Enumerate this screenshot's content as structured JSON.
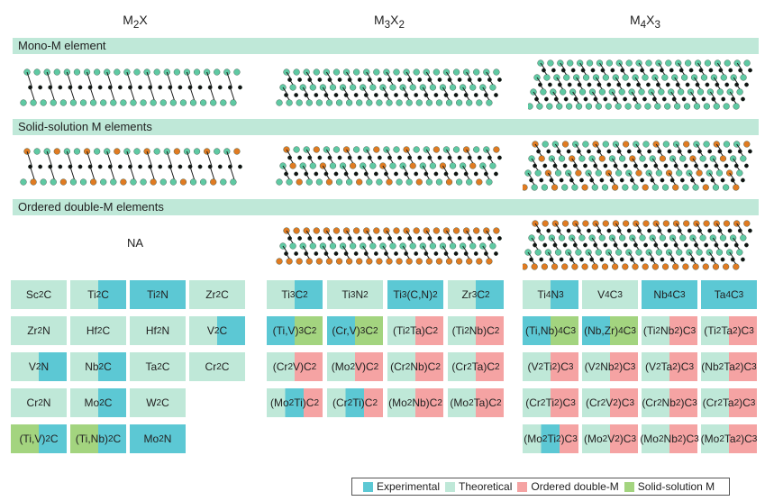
{
  "columns": [
    "M2X",
    "M3X2",
    "M4X3"
  ],
  "column_titles_html": [
    "M<sub>2</sub>X",
    "M<sub>3</sub>X<sub>2</sub>",
    "M<sub>4</sub>X<sub>3</sub>"
  ],
  "rows": [
    "Mono-M element",
    "Solid-solution M elements",
    "Ordered double-M elements"
  ],
  "na_label": "NA",
  "colors": {
    "experimental": "#5cc8d4",
    "theoretical": "#bfe8d8",
    "ordered": "#f5a3a3",
    "solid": "#a3d47f",
    "atom_green": "#5fc9a3",
    "atom_orange": "#e07b22",
    "atom_black": "#111111"
  },
  "legend": [
    {
      "label": "Experimental",
      "key": "experimental"
    },
    {
      "label": "Theoretical",
      "key": "theoretical"
    },
    {
      "label": "Ordered double-M",
      "key": "ordered"
    },
    {
      "label": "Solid-solution M",
      "key": "solid"
    }
  ],
  "m2x_cells": [
    {
      "html": "Sc<sub>2</sub>C",
      "fill": [
        "theoretical"
      ]
    },
    {
      "html": "Ti<sub>2</sub>C",
      "fill": [
        "theoretical",
        "experimental"
      ]
    },
    {
      "html": "Ti<sub>2</sub>N",
      "fill": [
        "experimental"
      ]
    },
    {
      "html": "Zr<sub>2</sub>C",
      "fill": [
        "theoretical"
      ]
    },
    {
      "html": "Zr<sub>2</sub>N",
      "fill": [
        "theoretical"
      ]
    },
    {
      "html": "Hf<sub>2</sub>C",
      "fill": [
        "theoretical"
      ]
    },
    {
      "html": "Hf<sub>2</sub>N",
      "fill": [
        "theoretical"
      ]
    },
    {
      "html": "V<sub>2</sub>C",
      "fill": [
        "theoretical",
        "experimental"
      ]
    },
    {
      "html": "V<sub>2</sub>N",
      "fill": [
        "theoretical",
        "experimental"
      ]
    },
    {
      "html": "Nb<sub>2</sub>C",
      "fill": [
        "theoretical",
        "experimental"
      ]
    },
    {
      "html": "Ta<sub>2</sub>C",
      "fill": [
        "theoretical"
      ]
    },
    {
      "html": "Cr<sub>2</sub>C",
      "fill": [
        "theoretical"
      ]
    },
    {
      "html": "Cr<sub>2</sub>N",
      "fill": [
        "theoretical"
      ]
    },
    {
      "html": "Mo<sub>2</sub>C",
      "fill": [
        "theoretical",
        "experimental"
      ]
    },
    {
      "html": "W<sub>2</sub>C",
      "fill": [
        "theoretical"
      ]
    },
    null,
    {
      "html": "(Ti,V)<sub>2</sub>C",
      "fill": [
        "solid",
        "experimental"
      ]
    },
    {
      "html": "(Ti,Nb)<sub>2</sub>C",
      "fill": [
        "solid",
        "experimental"
      ]
    },
    {
      "html": "Mo<sub>2</sub>N",
      "fill": [
        "experimental"
      ]
    },
    null
  ],
  "m3x2_cells": [
    {
      "html": "Ti<sub>3</sub>C<sub>2</sub>",
      "fill": [
        "theoretical",
        "experimental"
      ]
    },
    {
      "html": "Ti<sub>3</sub>N<sub>2</sub>",
      "fill": [
        "theoretical"
      ]
    },
    {
      "html": "Ti<sub>3</sub>(C,N)<sub>2</sub>",
      "fill": [
        "experimental"
      ]
    },
    {
      "html": "Zr<sub>3</sub>C<sub>2</sub>",
      "fill": [
        "theoretical",
        "experimental"
      ]
    },
    {
      "html": "(Ti,V)<sub>3</sub>C<sub>2</sub>",
      "fill": [
        "experimental",
        "solid"
      ]
    },
    {
      "html": "(Cr,V)<sub>3</sub>C<sub>2</sub>",
      "fill": [
        "experimental",
        "solid"
      ]
    },
    {
      "html": "(Ti<sub>2</sub>Ta)C<sub>2</sub>",
      "fill": [
        "theoretical",
        "ordered"
      ]
    },
    {
      "html": "(Ti<sub>2</sub>Nb)C<sub>2</sub>",
      "fill": [
        "theoretical",
        "ordered"
      ]
    },
    {
      "html": "(Cr<sub>2</sub>V)C<sub>2</sub>",
      "fill": [
        "theoretical",
        "ordered"
      ]
    },
    {
      "html": "(Mo<sub>2</sub>V)C<sub>2</sub>",
      "fill": [
        "theoretical",
        "ordered"
      ]
    },
    {
      "html": "(Cr<sub>2</sub>Nb)C<sub>2</sub>",
      "fill": [
        "theoretical",
        "ordered"
      ]
    },
    {
      "html": "(Cr<sub>2</sub>Ta)C<sub>2</sub>",
      "fill": [
        "theoretical",
        "ordered"
      ]
    },
    {
      "html": "(Mo<sub>2</sub>Ti)C<sub>2</sub>",
      "fill": [
        "theoretical",
        "experimental",
        "ordered"
      ]
    },
    {
      "html": "(Cr<sub>2</sub>Ti)C<sub>2</sub>",
      "fill": [
        "theoretical",
        "experimental",
        "ordered"
      ]
    },
    {
      "html": "(Mo<sub>2</sub>Nb)C<sub>2</sub>",
      "fill": [
        "theoretical",
        "ordered"
      ]
    },
    {
      "html": "(Mo<sub>2</sub>Ta)C<sub>2</sub>",
      "fill": [
        "theoretical",
        "ordered"
      ]
    }
  ],
  "m4x3_cells": [
    {
      "html": "Ti<sub>4</sub>N<sub>3</sub>",
      "fill": [
        "theoretical",
        "experimental"
      ]
    },
    {
      "html": "V<sub>4</sub>C<sub>3</sub>",
      "fill": [
        "theoretical"
      ]
    },
    {
      "html": "Nb<sub>4</sub>C<sub>3</sub>",
      "fill": [
        "experimental"
      ]
    },
    {
      "html": "Ta<sub>4</sub>C<sub>3</sub>",
      "fill": [
        "experimental"
      ]
    },
    {
      "html": "(Ti,Nb)<sub>4</sub>C<sub>3</sub>",
      "fill": [
        "experimental",
        "solid"
      ]
    },
    {
      "html": "(Nb,Zr)<sub>4</sub>C<sub>3</sub>",
      "fill": [
        "experimental",
        "solid"
      ]
    },
    {
      "html": "(Ti<sub>2</sub>Nb<sub>2</sub>)C<sub>3</sub>",
      "fill": [
        "theoretical",
        "ordered"
      ]
    },
    {
      "html": "(Ti<sub>2</sub>Ta<sub>2</sub>)C<sub>3</sub>",
      "fill": [
        "theoretical",
        "ordered"
      ]
    },
    {
      "html": "(V<sub>2</sub>Ti<sub>2</sub>)C<sub>3</sub>",
      "fill": [
        "theoretical",
        "ordered"
      ]
    },
    {
      "html": "(V<sub>2</sub>Nb<sub>2</sub>)C<sub>3</sub>",
      "fill": [
        "theoretical",
        "ordered"
      ]
    },
    {
      "html": "(V<sub>2</sub>Ta<sub>2</sub>)C<sub>3</sub>",
      "fill": [
        "theoretical",
        "ordered"
      ]
    },
    {
      "html": "(Nb<sub>2</sub>Ta<sub>2</sub>)C<sub>3</sub>",
      "fill": [
        "theoretical",
        "ordered"
      ]
    },
    {
      "html": "(Cr<sub>2</sub>Ti<sub>2</sub>)C<sub>3</sub>",
      "fill": [
        "theoretical",
        "ordered"
      ]
    },
    {
      "html": "(Cr<sub>2</sub>V<sub>2</sub>)C<sub>3</sub>",
      "fill": [
        "theoretical",
        "ordered"
      ]
    },
    {
      "html": "(Cr<sub>2</sub>Nb<sub>2</sub>)C<sub>3</sub>",
      "fill": [
        "theoretical",
        "ordered"
      ]
    },
    {
      "html": "(Cr<sub>2</sub>Ta<sub>2</sub>)C<sub>3</sub>",
      "fill": [
        "theoretical",
        "ordered"
      ]
    },
    {
      "html": "(Mo<sub>2</sub>Ti<sub>2</sub>)C<sub>3</sub>",
      "fill": [
        "theoretical",
        "experimental",
        "ordered"
      ]
    },
    {
      "html": "(Mo<sub>2</sub>V<sub>2</sub>)C<sub>3</sub>",
      "fill": [
        "theoretical",
        "ordered"
      ]
    },
    {
      "html": "(Mo<sub>2</sub>Nb<sub>2</sub>)C<sub>3</sub>",
      "fill": [
        "theoretical",
        "ordered"
      ]
    },
    {
      "html": "(Mo<sub>2</sub>Ta<sub>2</sub>)C<sub>3</sub>",
      "fill": [
        "theoretical",
        "ordered"
      ]
    }
  ]
}
